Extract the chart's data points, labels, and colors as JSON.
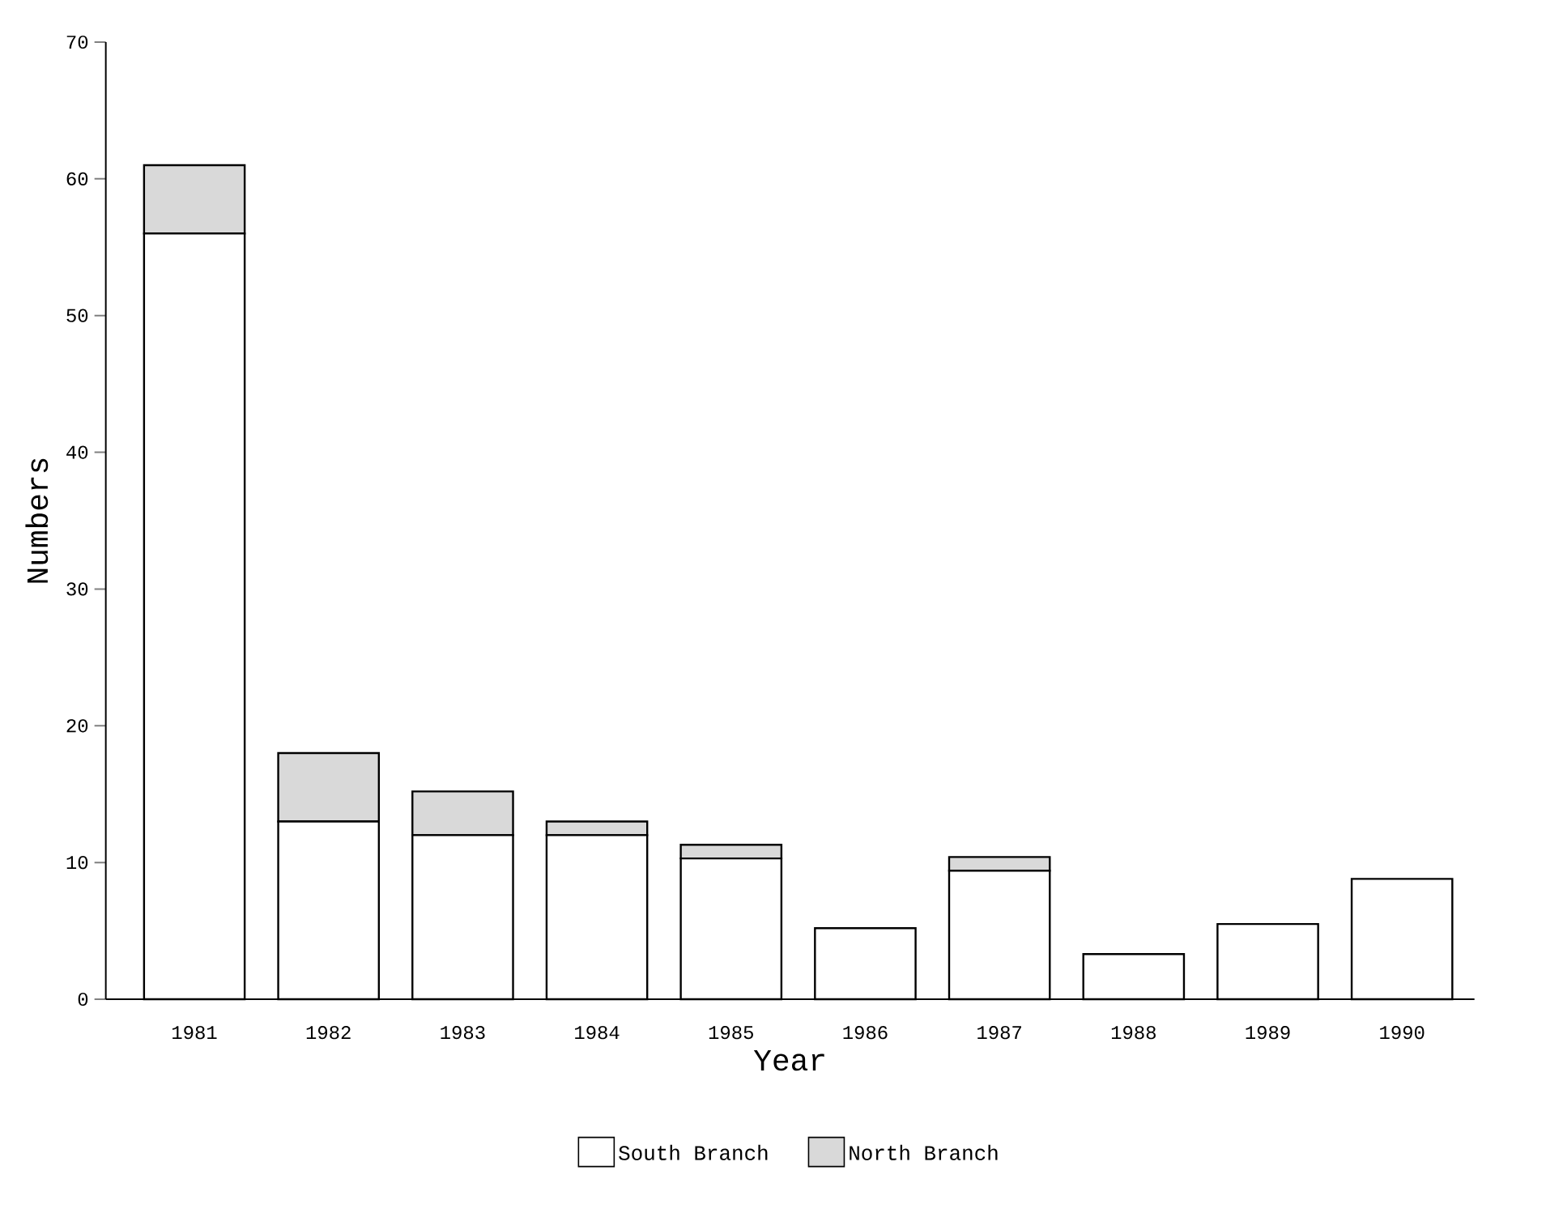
{
  "chart_data": {
    "type": "bar",
    "stacked": true,
    "xlabel": "Year",
    "ylabel": "Numbers",
    "categories": [
      "1981",
      "1982",
      "1983",
      "1984",
      "1985",
      "1986",
      "1987",
      "1988",
      "1989",
      "1990"
    ],
    "series": [
      {
        "name": "South Branch",
        "color": "#ffffff",
        "values": [
          56,
          13,
          12,
          12,
          10.3,
          5.2,
          9.4,
          3.3,
          5.5,
          8.8
        ]
      },
      {
        "name": "North Branch",
        "color": "#d9d9d9",
        "values": [
          5,
          5,
          3.2,
          1,
          1,
          0,
          1,
          0,
          0,
          0
        ]
      }
    ],
    "ylim": [
      0,
      70
    ],
    "yticks": [
      0,
      10,
      20,
      30,
      40,
      50,
      60,
      70
    ],
    "legend": "bottom"
  }
}
